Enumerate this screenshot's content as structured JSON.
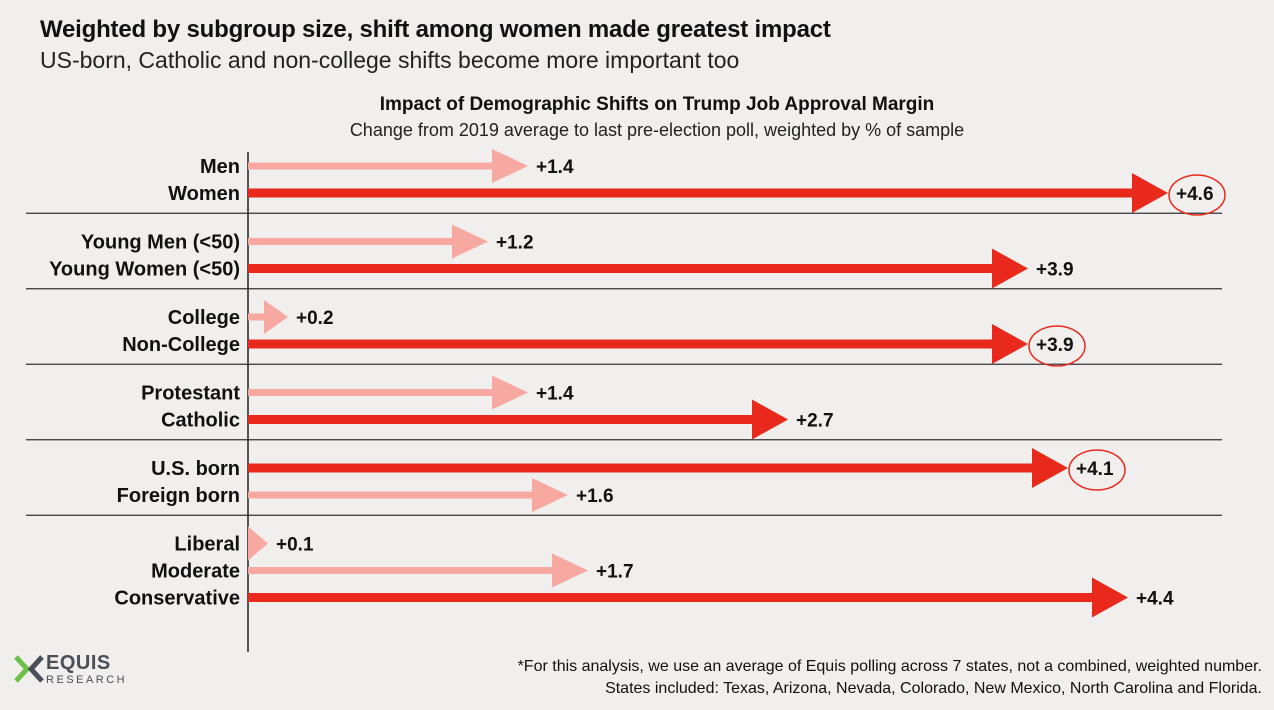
{
  "header": {
    "headline": "Weighted by subgroup size, shift among women made greatest impact",
    "subheadline": "US-born, Catholic and non-college shifts become more important too"
  },
  "chart_data": {
    "type": "bar",
    "orientation": "horizontal",
    "title": "Impact of Demographic Shifts on Trump Job Approval Margin",
    "subtitle": "Change from 2019 average to last pre-election poll, weighted by % of sample",
    "xlabel": "",
    "ylabel": "",
    "xlim": [
      0,
      4.6
    ],
    "grid": false,
    "legend": "none",
    "colors": {
      "light": "#f7a9a1",
      "dark": "#e8291c",
      "circle": "#e8291c"
    },
    "groups": [
      {
        "bars": [
          {
            "label": "Men",
            "value": 1.4,
            "value_label": "+1.4",
            "shade": "light",
            "circled": false
          },
          {
            "label": "Women",
            "value": 4.6,
            "value_label": "+4.6",
            "shade": "dark",
            "circled": true
          }
        ]
      },
      {
        "bars": [
          {
            "label": "Young Men (<50)",
            "value": 1.2,
            "value_label": "+1.2",
            "shade": "light",
            "circled": false
          },
          {
            "label": "Young Women (<50)",
            "value": 3.9,
            "value_label": "+3.9",
            "shade": "dark",
            "circled": false
          }
        ]
      },
      {
        "bars": [
          {
            "label": "College",
            "value": 0.2,
            "value_label": "+0.2",
            "shade": "light",
            "circled": false
          },
          {
            "label": "Non-College",
            "value": 3.9,
            "value_label": "+3.9",
            "shade": "dark",
            "circled": true
          }
        ]
      },
      {
        "bars": [
          {
            "label": "Protestant",
            "value": 1.4,
            "value_label": "+1.4",
            "shade": "light",
            "circled": false
          },
          {
            "label": "Catholic",
            "value": 2.7,
            "value_label": "+2.7",
            "shade": "dark",
            "circled": false
          }
        ]
      },
      {
        "bars": [
          {
            "label": "U.S. born",
            "value": 4.1,
            "value_label": "+4.1",
            "shade": "dark",
            "circled": true
          },
          {
            "label": "Foreign born",
            "value": 1.6,
            "value_label": "+1.6",
            "shade": "light",
            "circled": false
          }
        ]
      },
      {
        "bars": [
          {
            "label": "Liberal",
            "value": 0.1,
            "value_label": "+0.1",
            "shade": "light",
            "circled": false
          },
          {
            "label": "Moderate",
            "value": 1.7,
            "value_label": "+1.7",
            "shade": "light",
            "circled": false
          },
          {
            "label": "Conservative",
            "value": 4.4,
            "value_label": "+4.4",
            "shade": "dark",
            "circled": false
          }
        ]
      }
    ]
  },
  "footnote": {
    "line1": "*For this analysis, we use an average of Equis polling across 7 states, not a combined, weighted number.",
    "line2": "States included: Texas, Arizona, Nevada, Colorado, New Mexico, North Carolina and Florida."
  },
  "logo": {
    "word": "EQUIS",
    "sub": "RESEARCH",
    "colors": {
      "green": "#6cc04a",
      "gray": "#4a4e57"
    }
  }
}
